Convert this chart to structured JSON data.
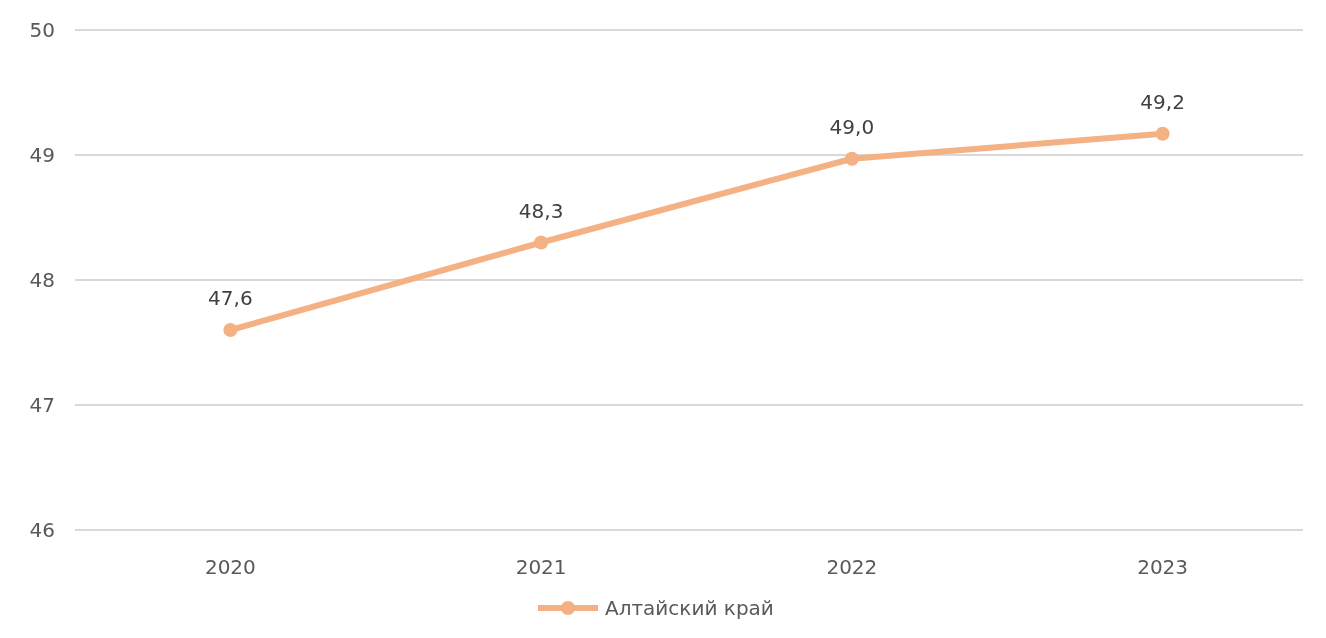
{
  "chart_data": {
    "type": "line",
    "categories": [
      "2020",
      "2021",
      "2022",
      "2023"
    ],
    "series": [
      {
        "name": "Алтайский край",
        "color": "#f4b183",
        "values": [
          47.6,
          48.3,
          48.97,
          49.17
        ],
        "value_labels": [
          "47,6",
          "48,3",
          "49,0",
          "49,2"
        ]
      }
    ],
    "ylim": [
      46,
      50
    ],
    "yticks": [
      46,
      47,
      48,
      49,
      50
    ],
    "grid": "y",
    "legend": "bottom",
    "marker": "circle",
    "line_style": "solid"
  }
}
